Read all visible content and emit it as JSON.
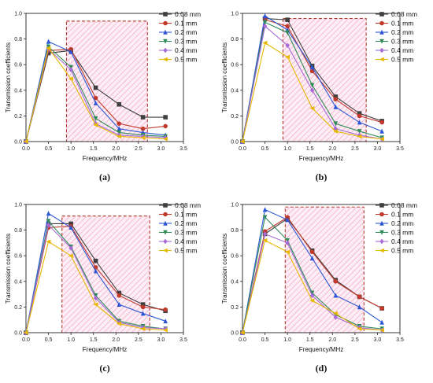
{
  "colors": {
    "series": [
      "#3f3f3f",
      "#c0392b",
      "#2c56d6",
      "#2e8b57",
      "#a66bd6",
      "#e6b800"
    ],
    "region_border": "#b03a2e",
    "region_hatch": "#f2a6c8"
  },
  "chart_data": [
    {
      "type": "line",
      "label": "(a)",
      "xlabel": "Frequency/MHz",
      "ylabel": "Transmission coefficients",
      "xlim": [
        0,
        3.5
      ],
      "ylim": [
        0,
        1.0
      ],
      "xticks": [
        "0.0",
        "0.5",
        "1.0",
        "1.5",
        "2.0",
        "2.5",
        "3.0",
        "3.5"
      ],
      "yticks": [
        "0.0",
        "0.2",
        "0.4",
        "0.6",
        "0.8",
        "1.0"
      ],
      "legend_position": "top-right",
      "highlight_region": {
        "x": [
          0.9,
          2.7
        ],
        "y": [
          0,
          0.94
        ]
      },
      "x": [
        0,
        0.5,
        1.0,
        1.55,
        2.07,
        2.6,
        3.1
      ],
      "series": [
        {
          "name": "0.08 mm",
          "marker": "square",
          "values": [
            0,
            0.69,
            0.71,
            0.42,
            0.29,
            0.19,
            0.19
          ]
        },
        {
          "name": "0.1 mm",
          "marker": "circle",
          "values": [
            0,
            0.71,
            0.72,
            0.34,
            0.14,
            0.1,
            0.12
          ]
        },
        {
          "name": "0.2 mm",
          "marker": "triangle-up",
          "values": [
            0,
            0.78,
            0.7,
            0.3,
            0.1,
            0.07,
            0.05
          ]
        },
        {
          "name": "0.3 mm",
          "marker": "triangle-down",
          "values": [
            0,
            0.74,
            0.58,
            0.18,
            0.07,
            0.05,
            0.04
          ]
        },
        {
          "name": "0.4 mm",
          "marker": "diamond",
          "values": [
            0,
            0.72,
            0.56,
            0.14,
            0.05,
            0.04,
            0.03
          ]
        },
        {
          "name": "0.5 mm",
          "marker": "triangle-left",
          "values": [
            0,
            0.73,
            0.49,
            0.13,
            0.04,
            0.03,
            0.02
          ]
        }
      ]
    },
    {
      "type": "line",
      "label": "(b)",
      "xlabel": "Frequency/MHz",
      "ylabel": "Transmission coefficients",
      "xlim": [
        0,
        3.5
      ],
      "ylim": [
        0,
        1.0
      ],
      "xticks": [
        "0.0",
        "0.5",
        "1.0",
        "1.5",
        "2.0",
        "2.5",
        "3.0",
        "3.5"
      ],
      "yticks": [
        "0.0",
        "0.2",
        "0.4",
        "0.6",
        "0.8",
        "1.0"
      ],
      "legend_position": "top-right",
      "highlight_region": {
        "x": [
          0.9,
          2.75
        ],
        "y": [
          0,
          0.96
        ]
      },
      "x": [
        0,
        0.5,
        1.0,
        1.55,
        2.07,
        2.6,
        3.1
      ],
      "series": [
        {
          "name": "0.08 mm",
          "marker": "square",
          "values": [
            0,
            0.96,
            0.95,
            0.59,
            0.35,
            0.22,
            0.16
          ]
        },
        {
          "name": "0.1 mm",
          "marker": "circle",
          "values": [
            0,
            0.95,
            0.9,
            0.55,
            0.33,
            0.2,
            0.15
          ]
        },
        {
          "name": "0.2 mm",
          "marker": "triangle-up",
          "values": [
            0,
            0.98,
            0.87,
            0.58,
            0.27,
            0.15,
            0.08
          ]
        },
        {
          "name": "0.3 mm",
          "marker": "triangle-down",
          "values": [
            0,
            0.93,
            0.85,
            0.44,
            0.14,
            0.08,
            0.03
          ]
        },
        {
          "name": "0.4 mm",
          "marker": "diamond",
          "values": [
            0,
            0.9,
            0.75,
            0.4,
            0.1,
            0.05,
            0.02
          ]
        },
        {
          "name": "0.5 mm",
          "marker": "triangle-left",
          "values": [
            0,
            0.77,
            0.66,
            0.26,
            0.08,
            0.04,
            0.02
          ]
        }
      ]
    },
    {
      "type": "line",
      "label": "(c)",
      "xlabel": "Frequency/MHz",
      "ylabel": "Transmission coefficients",
      "xlim": [
        0,
        3.5
      ],
      "ylim": [
        0,
        1.0
      ],
      "xticks": [
        "0.0",
        "0.5",
        "1.0",
        "1.5",
        "2.0",
        "2.5",
        "3.0",
        "3.5"
      ],
      "yticks": [
        "0.0",
        "0.2",
        "0.4",
        "0.6",
        "0.8",
        "1.0"
      ],
      "legend_position": "top-right",
      "highlight_region": {
        "x": [
          0.8,
          2.75
        ],
        "y": [
          0,
          0.91
        ]
      },
      "x": [
        0,
        0.5,
        1.0,
        1.55,
        2.07,
        2.6,
        3.1
      ],
      "series": [
        {
          "name": "0.08 mm",
          "marker": "square",
          "values": [
            0,
            0.85,
            0.85,
            0.56,
            0.31,
            0.22,
            0.17
          ]
        },
        {
          "name": "0.1 mm",
          "marker": "circle",
          "values": [
            0,
            0.82,
            0.83,
            0.51,
            0.29,
            0.2,
            0.18
          ]
        },
        {
          "name": "0.2 mm",
          "marker": "triangle-up",
          "values": [
            0,
            0.93,
            0.82,
            0.48,
            0.22,
            0.15,
            0.09
          ]
        },
        {
          "name": "0.3 mm",
          "marker": "triangle-down",
          "values": [
            0,
            0.87,
            0.67,
            0.29,
            0.09,
            0.05,
            0.03
          ]
        },
        {
          "name": "0.4 mm",
          "marker": "diamond",
          "values": [
            0,
            0.84,
            0.66,
            0.27,
            0.08,
            0.04,
            0.03
          ]
        },
        {
          "name": "0.5 mm",
          "marker": "triangle-left",
          "values": [
            0,
            0.71,
            0.6,
            0.22,
            0.07,
            0.03,
            0.02
          ]
        }
      ]
    },
    {
      "type": "line",
      "label": "(d)",
      "xlabel": "Frequency/MHz",
      "ylabel": "Transmission coefficients",
      "xlim": [
        0,
        3.5
      ],
      "ylim": [
        0,
        1.0
      ],
      "xticks": [
        "0.0",
        "0.5",
        "1.0",
        "1.5",
        "2.0",
        "2.5",
        "3.0",
        "3.5"
      ],
      "yticks": [
        "0.0",
        "0.2",
        "0.4",
        "0.6",
        "0.8",
        "1.0"
      ],
      "legend_position": "top-right",
      "highlight_region": {
        "x": [
          0.95,
          2.7
        ],
        "y": [
          0,
          0.98
        ]
      },
      "x": [
        0,
        0.5,
        1.0,
        1.55,
        2.07,
        2.6,
        3.1
      ],
      "series": [
        {
          "name": "0.08 mm",
          "marker": "square",
          "values": [
            0,
            0.77,
            0.89,
            0.64,
            0.41,
            0.28,
            0.19
          ]
        },
        {
          "name": "0.1 mm",
          "marker": "circle",
          "values": [
            0,
            0.79,
            0.9,
            0.63,
            0.4,
            0.28,
            0.19
          ]
        },
        {
          "name": "0.2 mm",
          "marker": "triangle-up",
          "values": [
            0,
            0.96,
            0.88,
            0.58,
            0.29,
            0.2,
            0.08
          ]
        },
        {
          "name": "0.3 mm",
          "marker": "triangle-down",
          "values": [
            0,
            0.9,
            0.72,
            0.31,
            0.14,
            0.05,
            0.03
          ]
        },
        {
          "name": "0.4 mm",
          "marker": "diamond",
          "values": [
            0,
            0.77,
            0.7,
            0.29,
            0.12,
            0.04,
            0.02
          ]
        },
        {
          "name": "0.5 mm",
          "marker": "triangle-left",
          "values": [
            0,
            0.72,
            0.63,
            0.25,
            0.15,
            0.03,
            0.02
          ]
        }
      ]
    }
  ]
}
